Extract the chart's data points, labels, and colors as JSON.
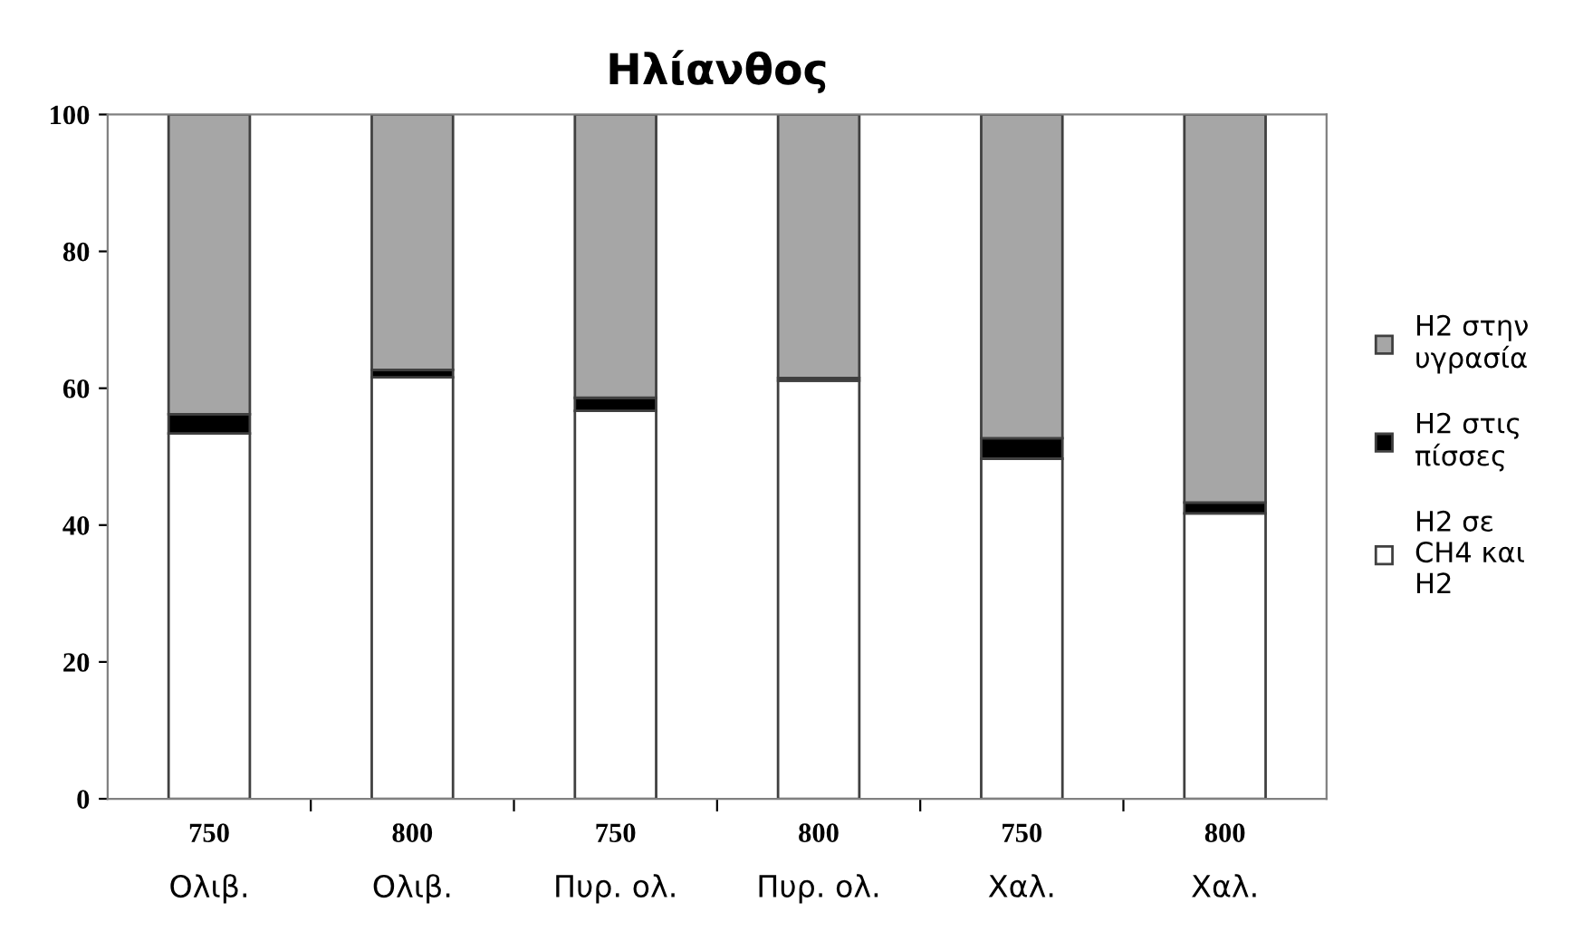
{
  "chart_data": {
    "type": "bar",
    "title": "Ηλίανθος",
    "stacked": true,
    "categories": [
      "750\nΟλιβ.",
      "800\nΟλιβ.",
      "750\nΠυρ. ολ.",
      "800\nΠυρ. ολ.",
      "750\nΧαλ.",
      "800\nΧαλ."
    ],
    "series": [
      {
        "name": "H2 σε\nCH4 και\nH2",
        "color": "#ffffff",
        "values": [
          53.4,
          61.6,
          56.7,
          61.1,
          49.7,
          41.7
        ]
      },
      {
        "name": "H2 στις\nπίσσες",
        "color": "#000000",
        "values": [
          2.8,
          1.1,
          1.9,
          0.4,
          3.0,
          1.6
        ]
      },
      {
        "name": "H2 στην\nυγρασία",
        "color": "#a6a6a6",
        "values": [
          43.8,
          37.3,
          41.4,
          38.5,
          47.3,
          56.7
        ]
      }
    ],
    "ylim": [
      0,
      100
    ],
    "yticks": [
      0,
      20,
      40,
      60,
      80,
      100
    ],
    "grid": false,
    "legend": "right"
  }
}
